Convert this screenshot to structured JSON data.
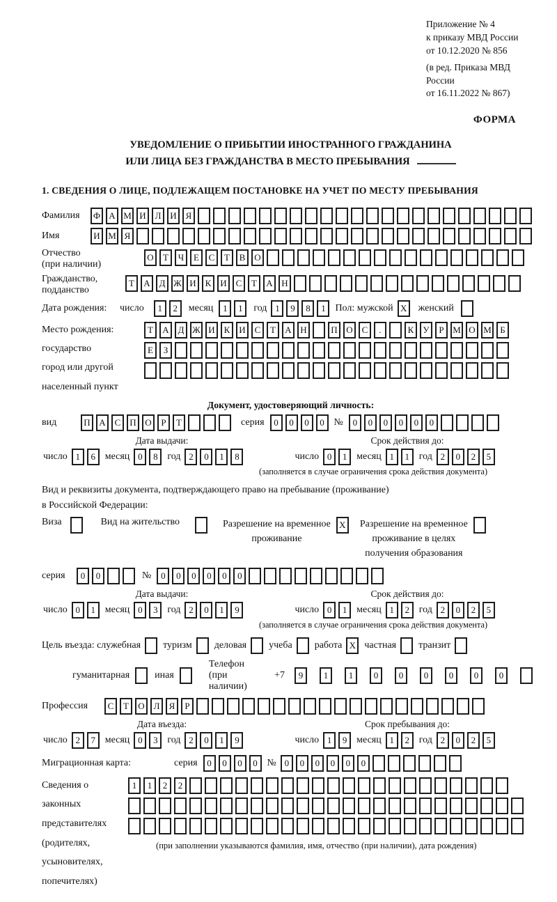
{
  "words": {
    "day": "число",
    "month": "месяц",
    "year": "год",
    "series": "серия",
    "number": "№",
    "vid": "вид",
    "pol": "Пол: мужской",
    "female": "женский"
  },
  "header": {
    "line1": "Приложение № 4",
    "line2": "к приказу МВД России",
    "line3": "от 10.12.2020 № 856",
    "line4": "(в ред. Приказа МВД России",
    "line5": "от 16.11.2022 № 867)",
    "forma": "ФОРМА"
  },
  "title": {
    "line1": "УВЕДОМЛЕНИЕ О ПРИБЫТИИ ИНОСТРАННОГО ГРАЖДАНИНА",
    "line2": "ИЛИ ЛИЦА БЕЗ ГРАЖДАНСТВА В МЕСТО ПРЕБЫВАНИЯ"
  },
  "section1": "1. СВЕДЕНИЯ О ЛИЦЕ, ПОДЛЕЖАЩЕМ ПОСТАНОВКЕ НА УЧЕТ ПО МЕСТУ ПРЕБЫВАНИЯ",
  "surname": {
    "label": "Фамилия",
    "cells": {
      "t": "ФАМИЛИЯ",
      "n": 29
    }
  },
  "firstname": {
    "label": "Имя",
    "cells": {
      "t": "ИМЯ",
      "n": 29
    }
  },
  "patronymic": {
    "label1": "Отчество",
    "label2": "(при наличии)",
    "cells": {
      "t": "ОТЧЕСТВО",
      "n": 25
    }
  },
  "citizenship": {
    "label1": "Гражданство,",
    "label2": "подданство",
    "cells": {
      "t": "ТАДЖИКИСТАН",
      "n": 26
    }
  },
  "birth": {
    "label": "Дата рождения:",
    "d": {
      "t": "12",
      "n": 2
    },
    "m": {
      "t": "11",
      "n": 2
    },
    "y": {
      "t": "1981",
      "n": 4
    },
    "male_box": {
      "t": "X",
      "n": 1
    },
    "female_box": {
      "t": "",
      "n": 1
    }
  },
  "birthplace": {
    "label1": "Место рождения:",
    "label2": "государство",
    "label3": "город или другой",
    "label4": "населенный пункт",
    "row1": {
      "t": "ТАДЖИКИСТАН ПОС. КУРМОМБ",
      "n": 24
    },
    "row2": {
      "t": "ЕЗ",
      "n": 24
    },
    "row3": {
      "t": "",
      "n": 24
    }
  },
  "iddoc": {
    "heading": "Документ, удостоверяющий личность:",
    "vid_cells": {
      "t": "ПАСПОРТ",
      "n": 10
    },
    "series_cells": {
      "t": "0000",
      "n": 4
    },
    "number_cells": {
      "t": "000000",
      "n": 10
    }
  },
  "issue1": {
    "left_heading": "Дата выдачи:",
    "right_heading": "Срок действия до:",
    "left": {
      "d": {
        "t": "16",
        "n": 2
      },
      "m": {
        "t": "08",
        "n": 2
      },
      "y": {
        "t": "2018",
        "n": 4
      }
    },
    "right": {
      "d": {
        "t": "01",
        "n": 2
      },
      "m": {
        "t": "11",
        "n": 2
      },
      "y": {
        "t": "2025",
        "n": 4
      }
    }
  },
  "limit_note": "(заполняется в случае ограничения срока действия документа)",
  "residence": {
    "para1": "Вид и реквизиты документа, подтверждающего право на пребывание (проживание)",
    "para2": "в Российской Федерации:",
    "opt1": {
      "label": "Виза",
      "box": {
        "t": "",
        "n": 1
      }
    },
    "opt2": {
      "label": "Вид на жительство",
      "box": {
        "t": "",
        "n": 1
      }
    },
    "opt3": {
      "line1": "Разрешение на временное",
      "line2": "проживание",
      "box": {
        "t": "X",
        "n": 1
      }
    },
    "opt4": {
      "line1": "Разрешение на временное",
      "line2": "проживание в целях",
      "line3": "получения образования",
      "box": {
        "t": "",
        "n": 1
      }
    }
  },
  "doc2": {
    "series_cells": {
      "t": "00",
      "n": 4
    },
    "number_cells": {
      "t": "000000",
      "n": 15
    }
  },
  "issue2": {
    "left_heading": "Дата выдачи:",
    "right_heading": "Срок действия до:",
    "left": {
      "d": {
        "t": "01",
        "n": 2
      },
      "m": {
        "t": "03",
        "n": 2
      },
      "y": {
        "t": "2019",
        "n": 4
      }
    },
    "right": {
      "d": {
        "t": "01",
        "n": 2
      },
      "m": {
        "t": "12",
        "n": 2
      },
      "y": {
        "t": "2025",
        "n": 4
      }
    }
  },
  "purpose": {
    "label": "Цель въезда: служебная",
    "opts": [
      {
        "label": "туризм",
        "box": {
          "t": "",
          "n": 1
        }
      },
      {
        "label": "деловая",
        "box": {
          "t": "",
          "n": 1
        }
      },
      {
        "label": "учеба",
        "box": {
          "t": "",
          "n": 1
        }
      },
      {
        "label": "работа",
        "box": {
          "t": "X",
          "n": 1
        }
      },
      {
        "label": "частная",
        "box": {
          "t": "",
          "n": 1
        }
      },
      {
        "label": "транзит",
        "box": {
          "t": "",
          "n": 1
        }
      }
    ],
    "first_box": {
      "t": "",
      "n": 1
    },
    "opt_human": {
      "label": "гуманитарная",
      "box": {
        "t": "",
        "n": 1
      }
    },
    "opt_other": {
      "label": "иная",
      "box": {
        "t": "",
        "n": 1
      }
    },
    "phone_label": "Телефон (при наличии)",
    "phone_prefix": "+7",
    "phone_cells": {
      "t": "911000000",
      "n": 10
    }
  },
  "profession": {
    "label": "Профессия",
    "cells": {
      "t": "СТОЛЯР",
      "n": 25
    }
  },
  "entry": {
    "left_heading": "Дата въезда:",
    "right_heading": "Срок пребывания до:",
    "left": {
      "d": {
        "t": "27",
        "n": 2
      },
      "m": {
        "t": "03",
        "n": 2
      },
      "y": {
        "t": "2019",
        "n": 4
      }
    },
    "right": {
      "d": {
        "t": "19",
        "n": 2
      },
      "m": {
        "t": "12",
        "n": 2
      },
      "y": {
        "t": "2025",
        "n": 4
      }
    }
  },
  "migcard": {
    "label": "Миграционная карта:",
    "series_cells": {
      "t": "0000",
      "n": 4
    },
    "number_cells": {
      "t": "000000",
      "n": 12
    }
  },
  "guardians": {
    "label1": "Сведения о",
    "label2": "законных",
    "label3": "представителях",
    "label4": "(родителях,",
    "label5": "усыновителях,",
    "label6": "попечителях)",
    "row1": {
      "t": "1122",
      "n": 25
    },
    "row2": {
      "t": "",
      "n": 26
    },
    "row3": {
      "t": "",
      "n": 26
    },
    "note": "(при заполнении указываются фамилия, имя, отчество (при наличии), дата рождения)"
  }
}
